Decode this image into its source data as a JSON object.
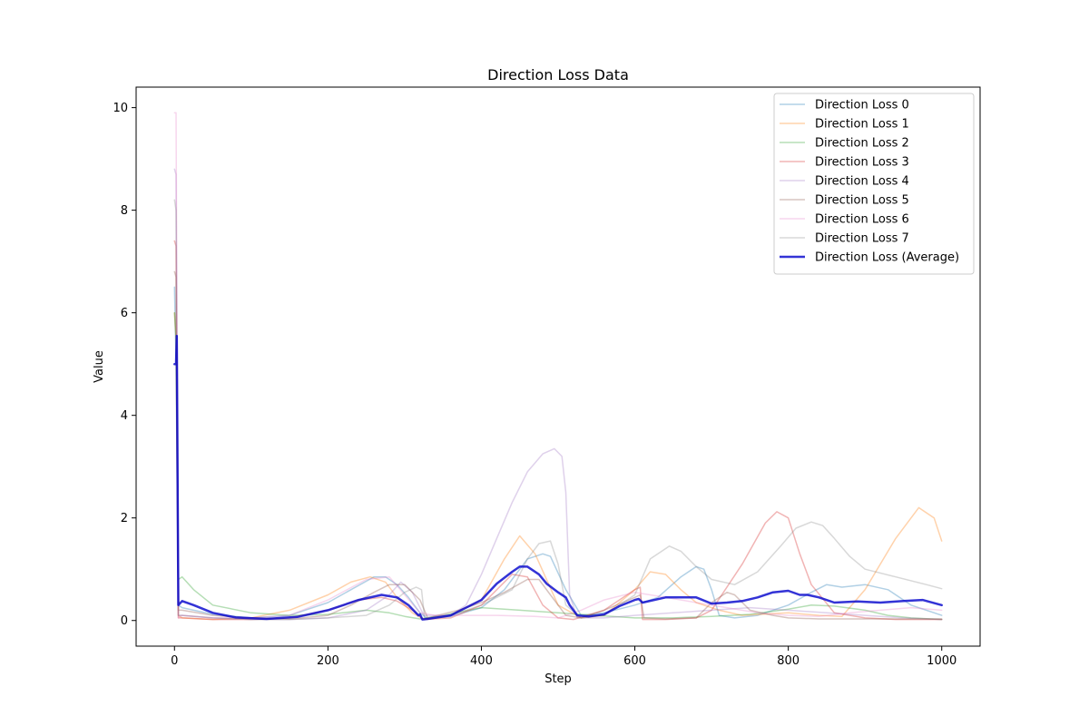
{
  "chart_data": {
    "type": "line",
    "title": "Direction Loss Data",
    "xlabel": "Step",
    "ylabel": "Value",
    "xlim": [
      -50,
      1050
    ],
    "ylim": [
      -0.5,
      10.4
    ],
    "xticks": [
      0,
      200,
      400,
      600,
      800,
      1000
    ],
    "yticks": [
      0,
      2,
      4,
      6,
      8,
      10
    ],
    "grid": false,
    "legend_position": "top-right",
    "series": [
      {
        "name": "Direction Loss 0",
        "color": "#1f77b4",
        "alpha": 0.35,
        "line_width": 1.5,
        "x": [
          0,
          2,
          5,
          10,
          25,
          50,
          100,
          150,
          200,
          230,
          260,
          275,
          290,
          305,
          320,
          330,
          360,
          400,
          430,
          460,
          480,
          490,
          510,
          530,
          560,
          600,
          630,
          660,
          680,
          690,
          700,
          710,
          730,
          760,
          800,
          830,
          850,
          870,
          900,
          930,
          960,
          1000
        ],
        "y": [
          6.5,
          5.0,
          0.3,
          0.25,
          0.2,
          0.12,
          0.05,
          0.1,
          0.35,
          0.6,
          0.85,
          0.85,
          0.7,
          0.45,
          0.15,
          0.03,
          0.08,
          0.25,
          0.6,
          1.2,
          1.3,
          1.25,
          0.6,
          0.1,
          0.15,
          0.3,
          0.45,
          0.85,
          1.05,
          1.0,
          0.6,
          0.1,
          0.05,
          0.1,
          0.3,
          0.55,
          0.7,
          0.65,
          0.7,
          0.6,
          0.3,
          0.1
        ]
      },
      {
        "name": "Direction Loss 1",
        "color": "#ff7f0e",
        "alpha": 0.35,
        "line_width": 1.5,
        "x": [
          0,
          2,
          5,
          10,
          50,
          100,
          150,
          200,
          230,
          255,
          275,
          290,
          310,
          325,
          360,
          400,
          430,
          450,
          470,
          500,
          530,
          560,
          600,
          620,
          640,
          660,
          680,
          710,
          740,
          800,
          840,
          870,
          900,
          940,
          970,
          990,
          1000
        ],
        "y": [
          6.0,
          5.5,
          0.1,
          0.05,
          0.02,
          0.05,
          0.2,
          0.5,
          0.75,
          0.85,
          0.75,
          0.45,
          0.15,
          0.02,
          0.1,
          0.4,
          1.2,
          1.65,
          1.3,
          0.3,
          0.05,
          0.1,
          0.6,
          0.95,
          0.9,
          0.6,
          0.35,
          0.2,
          0.1,
          0.15,
          0.1,
          0.08,
          0.6,
          1.6,
          2.2,
          2.0,
          1.55
        ]
      },
      {
        "name": "Direction Loss 2",
        "color": "#2ca02c",
        "alpha": 0.35,
        "line_width": 1.5,
        "x": [
          0,
          2,
          5,
          10,
          25,
          50,
          100,
          150,
          200,
          250,
          280,
          300,
          320,
          350,
          400,
          450,
          500,
          550,
          600,
          650,
          700,
          750,
          800,
          830,
          860,
          900,
          930,
          960,
          1000
        ],
        "y": [
          6.0,
          5.5,
          0.8,
          0.85,
          0.6,
          0.3,
          0.15,
          0.1,
          0.12,
          0.2,
          0.15,
          0.08,
          0.03,
          0.1,
          0.25,
          0.2,
          0.15,
          0.1,
          0.05,
          0.05,
          0.08,
          0.12,
          0.22,
          0.3,
          0.28,
          0.2,
          0.1,
          0.05,
          0.02
        ]
      },
      {
        "name": "Direction Loss 3",
        "color": "#d62728",
        "alpha": 0.35,
        "line_width": 1.5,
        "x": [
          0,
          2,
          5,
          10,
          50,
          100,
          150,
          200,
          240,
          270,
          290,
          310,
          325,
          360,
          400,
          420,
          440,
          460,
          480,
          500,
          520,
          560,
          600,
          607,
          610,
          640,
          680,
          700,
          740,
          770,
          785,
          800,
          815,
          830,
          860,
          900,
          940,
          1000
        ],
        "y": [
          7.4,
          7.3,
          0.05,
          0.05,
          0.02,
          0.02,
          0.05,
          0.2,
          0.4,
          0.45,
          0.38,
          0.2,
          0.02,
          0.05,
          0.3,
          0.6,
          0.9,
          0.85,
          0.3,
          0.05,
          0.02,
          0.2,
          0.6,
          0.65,
          0.02,
          0.02,
          0.05,
          0.2,
          1.1,
          1.9,
          2.12,
          2.0,
          1.3,
          0.7,
          0.15,
          0.05,
          0.02,
          0.02
        ]
      },
      {
        "name": "Direction Loss 4",
        "color": "#9467bd",
        "alpha": 0.3,
        "line_width": 1.5,
        "x": [
          0,
          2,
          5,
          10,
          50,
          100,
          150,
          200,
          250,
          280,
          295,
          310,
          325,
          360,
          380,
          400,
          420,
          440,
          460,
          480,
          495,
          505,
          510,
          515,
          525,
          560,
          600,
          650,
          700,
          750,
          800,
          850,
          900,
          950,
          1000
        ],
        "y": [
          8.8,
          8.7,
          0.1,
          0.1,
          0.05,
          0.02,
          0.02,
          0.05,
          0.2,
          0.5,
          0.75,
          0.55,
          0.1,
          0.1,
          0.3,
          0.9,
          1.6,
          2.3,
          2.9,
          3.25,
          3.35,
          3.2,
          2.5,
          0.5,
          0.05,
          0.05,
          0.1,
          0.15,
          0.2,
          0.25,
          0.2,
          0.15,
          0.1,
          0.05,
          0.02
        ]
      },
      {
        "name": "Direction Loss 5",
        "color": "#8c564b",
        "alpha": 0.35,
        "line_width": 1.5,
        "x": [
          0,
          2,
          5,
          10,
          50,
          100,
          150,
          200,
          230,
          260,
          280,
          300,
          320,
          330,
          370,
          400,
          430,
          460,
          475,
          490,
          510,
          530,
          560,
          600,
          607,
          612,
          640,
          680,
          700,
          720,
          730,
          750,
          780,
          800,
          840,
          880,
          920,
          960,
          1000
        ],
        "y": [
          6.8,
          6.7,
          0.2,
          0.2,
          0.1,
          0.05,
          0.03,
          0.1,
          0.3,
          0.55,
          0.7,
          0.7,
          0.4,
          0.05,
          0.2,
          0.35,
          0.55,
          0.8,
          0.8,
          0.5,
          0.1,
          0.05,
          0.2,
          0.45,
          0.5,
          0.05,
          0.03,
          0.05,
          0.35,
          0.55,
          0.5,
          0.2,
          0.1,
          0.05,
          0.03,
          0.03,
          0.03,
          0.03,
          0.03
        ]
      },
      {
        "name": "Direction Loss 6",
        "color": "#e377c2",
        "alpha": 0.3,
        "line_width": 1.5,
        "x": [
          0,
          2,
          5,
          10,
          50,
          100,
          150,
          200,
          250,
          280,
          300,
          320,
          340,
          380,
          420,
          470,
          500,
          530,
          560,
          600,
          640,
          680,
          720,
          760,
          800,
          840,
          880,
          920,
          960,
          1000
        ],
        "y": [
          9.9,
          9.9,
          0.05,
          0.1,
          0.05,
          0.05,
          0.1,
          0.4,
          0.8,
          0.85,
          0.5,
          0.15,
          0.1,
          0.1,
          0.1,
          0.08,
          0.05,
          0.2,
          0.4,
          0.55,
          0.45,
          0.35,
          0.25,
          0.15,
          0.1,
          0.08,
          0.15,
          0.2,
          0.25,
          0.2
        ]
      },
      {
        "name": "Direction Loss 7",
        "color": "#7f7f7f",
        "alpha": 0.3,
        "line_width": 1.5,
        "x": [
          0,
          2,
          5,
          10,
          50,
          100,
          150,
          200,
          250,
          280,
          300,
          315,
          322,
          326,
          360,
          400,
          440,
          460,
          475,
          490,
          500,
          510,
          530,
          560,
          600,
          620,
          645,
          660,
          680,
          700,
          730,
          760,
          790,
          810,
          830,
          845,
          860,
          880,
          900,
          940,
          980,
          1000
        ],
        "y": [
          8.2,
          8.0,
          0.1,
          0.1,
          0.05,
          0.02,
          0.02,
          0.05,
          0.1,
          0.3,
          0.55,
          0.65,
          0.6,
          0.05,
          0.1,
          0.3,
          0.6,
          1.2,
          1.5,
          1.55,
          1.1,
          0.3,
          0.05,
          0.1,
          0.5,
          1.2,
          1.45,
          1.35,
          1.05,
          0.8,
          0.7,
          0.95,
          1.45,
          1.8,
          1.92,
          1.85,
          1.6,
          1.25,
          1.0,
          0.85,
          0.7,
          0.62
        ]
      },
      {
        "name": "Direction Loss (Average)",
        "color": "#0000cc",
        "alpha": 0.8,
        "line_width": 2.5,
        "x": [
          0,
          2,
          3,
          5,
          10,
          25,
          50,
          80,
          120,
          160,
          200,
          240,
          270,
          290,
          305,
          318,
          320,
          323,
          330,
          360,
          400,
          420,
          440,
          450,
          460,
          475,
          485,
          500,
          510,
          515,
          525,
          540,
          560,
          580,
          600,
          605,
          610,
          640,
          680,
          700,
          720,
          740,
          760,
          780,
          800,
          815,
          825,
          840,
          860,
          890,
          920,
          950,
          975,
          1000
        ],
        "y": [
          5.0,
          5.0,
          5.55,
          0.3,
          0.38,
          0.3,
          0.15,
          0.06,
          0.03,
          0.07,
          0.2,
          0.4,
          0.5,
          0.45,
          0.3,
          0.1,
          0.12,
          0.02,
          0.03,
          0.1,
          0.4,
          0.72,
          0.95,
          1.05,
          1.05,
          0.9,
          0.72,
          0.55,
          0.45,
          0.3,
          0.1,
          0.08,
          0.12,
          0.28,
          0.4,
          0.42,
          0.35,
          0.45,
          0.45,
          0.33,
          0.35,
          0.38,
          0.45,
          0.55,
          0.58,
          0.5,
          0.5,
          0.45,
          0.35,
          0.37,
          0.35,
          0.38,
          0.4,
          0.3
        ]
      }
    ]
  }
}
